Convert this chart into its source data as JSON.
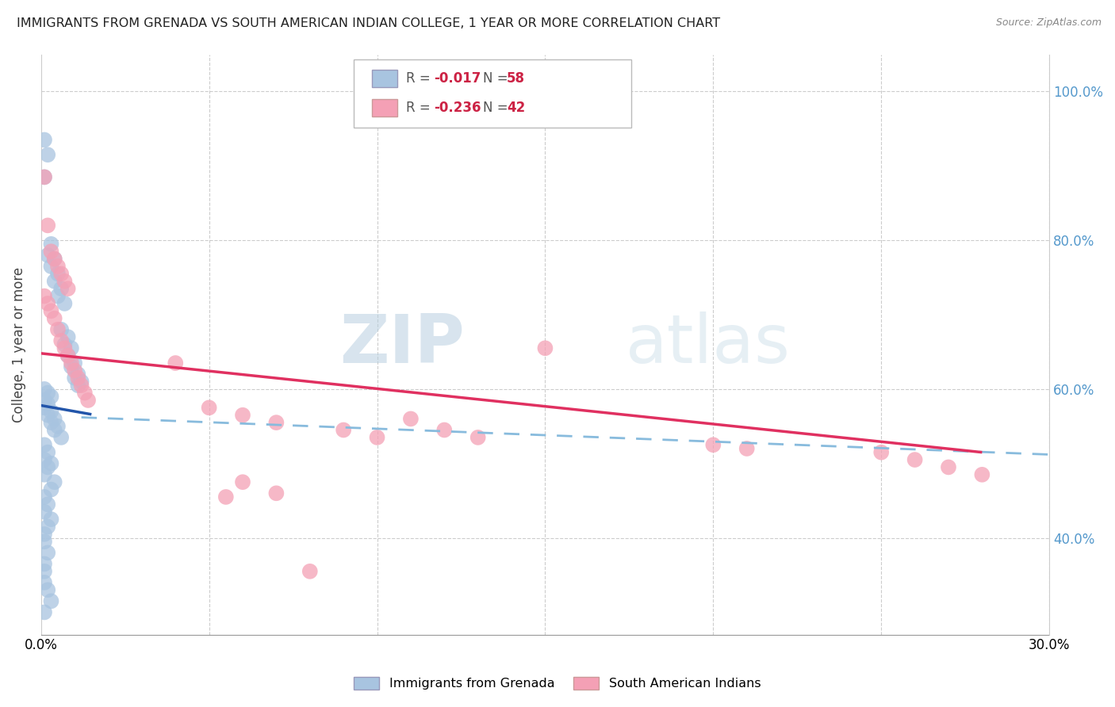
{
  "title": "IMMIGRANTS FROM GRENADA VS SOUTH AMERICAN INDIAN COLLEGE, 1 YEAR OR MORE CORRELATION CHART",
  "source": "Source: ZipAtlas.com",
  "ylabel": "College, 1 year or more",
  "xlim": [
    0.0,
    0.3
  ],
  "ylim": [
    0.27,
    1.05
  ],
  "legend_r1": "-0.017",
  "legend_n1": "58",
  "legend_r2": "-0.236",
  "legend_n2": "42",
  "blue_color": "#a8c4e0",
  "pink_color": "#f4a0b5",
  "blue_line_color": "#2255aa",
  "pink_line_color": "#e03060",
  "dashed_line_color": "#88bbdd",
  "watermark_zip": "ZIP",
  "watermark_atlas": "atlas",
  "blue_scatter_x": [
    0.001,
    0.002,
    0.001,
    0.003,
    0.002,
    0.004,
    0.003,
    0.005,
    0.004,
    0.006,
    0.005,
    0.007,
    0.006,
    0.008,
    0.007,
    0.009,
    0.008,
    0.01,
    0.009,
    0.011,
    0.01,
    0.012,
    0.011,
    0.001,
    0.002,
    0.003,
    0.001,
    0.002,
    0.001,
    0.003,
    0.002,
    0.004,
    0.003,
    0.005,
    0.004,
    0.006,
    0.001,
    0.002,
    0.001,
    0.003,
    0.002,
    0.001,
    0.004,
    0.003,
    0.001,
    0.002,
    0.001,
    0.003,
    0.002,
    0.001,
    0.001,
    0.002,
    0.001,
    0.001,
    0.001,
    0.002,
    0.003,
    0.001
  ],
  "blue_scatter_y": [
    0.935,
    0.915,
    0.885,
    0.795,
    0.78,
    0.775,
    0.765,
    0.755,
    0.745,
    0.735,
    0.725,
    0.715,
    0.68,
    0.67,
    0.66,
    0.655,
    0.645,
    0.635,
    0.63,
    0.62,
    0.615,
    0.61,
    0.605,
    0.6,
    0.595,
    0.59,
    0.585,
    0.58,
    0.575,
    0.57,
    0.565,
    0.56,
    0.555,
    0.55,
    0.545,
    0.535,
    0.525,
    0.515,
    0.505,
    0.5,
    0.495,
    0.485,
    0.475,
    0.465,
    0.455,
    0.445,
    0.435,
    0.425,
    0.415,
    0.405,
    0.395,
    0.38,
    0.365,
    0.355,
    0.34,
    0.33,
    0.315,
    0.3
  ],
  "pink_scatter_x": [
    0.001,
    0.002,
    0.003,
    0.004,
    0.005,
    0.006,
    0.007,
    0.008,
    0.001,
    0.002,
    0.003,
    0.004,
    0.005,
    0.006,
    0.007,
    0.008,
    0.009,
    0.01,
    0.011,
    0.012,
    0.013,
    0.014,
    0.04,
    0.05,
    0.06,
    0.07,
    0.09,
    0.1,
    0.11,
    0.12,
    0.13,
    0.06,
    0.07,
    0.08,
    0.15,
    0.2,
    0.21,
    0.25,
    0.26,
    0.27,
    0.28,
    0.055
  ],
  "pink_scatter_y": [
    0.885,
    0.82,
    0.785,
    0.775,
    0.765,
    0.755,
    0.745,
    0.735,
    0.725,
    0.715,
    0.705,
    0.695,
    0.68,
    0.665,
    0.655,
    0.645,
    0.635,
    0.625,
    0.615,
    0.605,
    0.595,
    0.585,
    0.635,
    0.575,
    0.565,
    0.555,
    0.545,
    0.535,
    0.56,
    0.545,
    0.535,
    0.475,
    0.46,
    0.355,
    0.655,
    0.525,
    0.52,
    0.515,
    0.505,
    0.495,
    0.485,
    0.455
  ],
  "blue_line_x": [
    0.0,
    0.015
  ],
  "blue_line_y": [
    0.578,
    0.566
  ],
  "pink_line_x": [
    0.0,
    0.28
  ],
  "pink_line_y": [
    0.648,
    0.515
  ],
  "dashed_line_x": [
    0.012,
    0.3
  ],
  "dashed_line_y": [
    0.562,
    0.512
  ]
}
